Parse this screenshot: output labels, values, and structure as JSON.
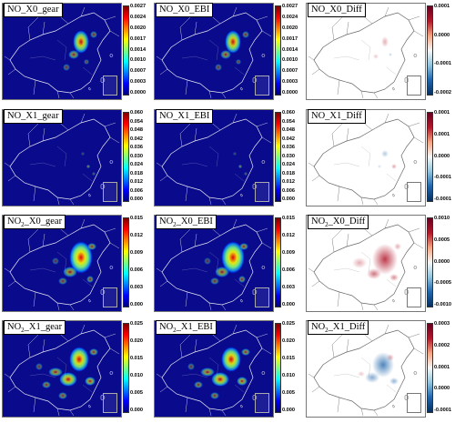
{
  "colors": {
    "sequential": [
      "#00007f",
      "#0000ff",
      "#0080ff",
      "#00ffff",
      "#7fff7f",
      "#ffff00",
      "#ff8000",
      "#ff0000",
      "#7f0000"
    ],
    "diverging": [
      "#053061",
      "#2166ac",
      "#92c5de",
      "#f7f7f7",
      "#f4a582",
      "#b2182b",
      "#67001f"
    ],
    "map_background_sequential": "#0a0a8c",
    "map_background_diff": "#ffffff",
    "border_sequential": "#ffffff",
    "border_diff": "#555555"
  },
  "panels": [
    {
      "title_base": "NO",
      "title_sub": "",
      "title_tail": "_X0_gear",
      "kind": "sequential",
      "ticks": [
        "0.0027",
        "0.0024",
        "0.0020",
        "0.0017",
        "0.0014",
        "0.0010",
        "0.0007",
        "0.0003",
        "0.0000"
      ]
    },
    {
      "title_base": "NO",
      "title_sub": "",
      "title_tail": "_X0_EBI",
      "kind": "sequential",
      "ticks": [
        "0.0027",
        "0.0024",
        "0.0020",
        "0.0017",
        "0.0014",
        "0.0010",
        "0.0007",
        "0.0003",
        "0.0000"
      ]
    },
    {
      "title_base": "NO",
      "title_sub": "",
      "title_tail": "_X0_Diff",
      "kind": "diverging",
      "ticks": [
        "0.0001",
        "0.0000",
        "-0.0001",
        "-0.0002"
      ]
    },
    {
      "title_base": "NO",
      "title_sub": "",
      "title_tail": "_X1_gear",
      "kind": "sequential",
      "ticks": [
        "0.060",
        "0.054",
        "0.048",
        "0.042",
        "0.036",
        "0.030",
        "0.024",
        "0.018",
        "0.012",
        "0.006",
        "0.000"
      ]
    },
    {
      "title_base": "NO",
      "title_sub": "",
      "title_tail": "_X1_EBI",
      "kind": "sequential",
      "ticks": [
        "0.060",
        "0.054",
        "0.048",
        "0.042",
        "0.036",
        "0.030",
        "0.024",
        "0.018",
        "0.012",
        "0.006",
        "0.000"
      ]
    },
    {
      "title_base": "NO",
      "title_sub": "",
      "title_tail": "_X1_Diff",
      "kind": "diverging",
      "ticks": [
        "0.0001",
        "0.0001",
        "0.0000",
        "-0.0001",
        "-0.0001"
      ]
    },
    {
      "title_base": "NO",
      "title_sub": "2",
      "title_tail": "_X0_gear",
      "kind": "sequential",
      "ticks": [
        "0.015",
        "0.012",
        "0.009",
        "0.006",
        "0.003",
        "0.000"
      ]
    },
    {
      "title_base": "NO",
      "title_sub": "2",
      "title_tail": "_X0_EBI",
      "kind": "sequential",
      "ticks": [
        "0.015",
        "0.012",
        "0.009",
        "0.006",
        "0.003",
        "0.000"
      ]
    },
    {
      "title_base": "NO",
      "title_sub": "2",
      "title_tail": "_X0_Diff",
      "kind": "diverging",
      "ticks": [
        "0.0010",
        "0.0005",
        "0.0000",
        "-0.0005",
        "-0.0010"
      ]
    },
    {
      "title_base": "NO",
      "title_sub": "2",
      "title_tail": "_X1_gear",
      "kind": "sequential",
      "ticks": [
        "0.025",
        "0.020",
        "0.015",
        "0.010",
        "0.005",
        "0.000"
      ]
    },
    {
      "title_base": "NO",
      "title_sub": "2",
      "title_tail": "_X1_EBI",
      "kind": "sequential",
      "ticks": [
        "0.025",
        "0.020",
        "0.015",
        "0.010",
        "0.005",
        "0.000"
      ]
    },
    {
      "title_base": "NO",
      "title_sub": "2",
      "title_tail": "_X1_Diff",
      "kind": "diverging",
      "ticks": [
        "0.0003",
        "0.0002",
        "0.0001",
        "0.0000",
        "-0.0001"
      ]
    }
  ]
}
